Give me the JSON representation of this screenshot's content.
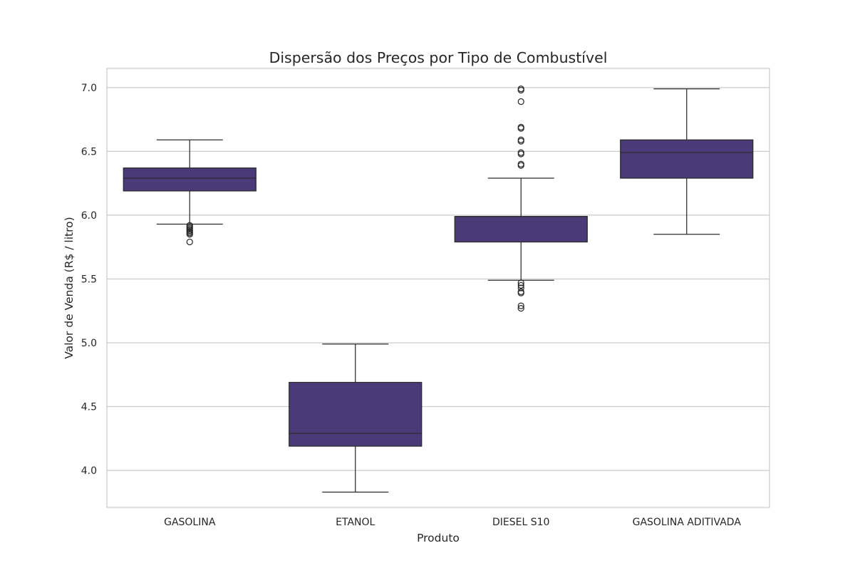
{
  "chart_data": {
    "type": "box",
    "title": "Dispersão dos Preços por Tipo de Combustível",
    "xlabel": "Produto",
    "ylabel": "Valor de Venda (R$ / litro)",
    "ylim": [
      3.71,
      7.15
    ],
    "yticks": [
      "4.0",
      "4.5",
      "5.0",
      "5.5",
      "6.0",
      "6.5",
      "7.0"
    ],
    "grid": "horizontal",
    "colors": {
      "box_fill": "#4a3b78",
      "line": "#2b2b2b",
      "grid": "#cccccc",
      "frame": "#cccccc"
    },
    "categories": [
      "GASOLINA",
      "ETANOL",
      "DIESEL S10",
      "GASOLINA ADITIVADA"
    ],
    "boxes": [
      {
        "category": "GASOLINA",
        "whisker_low": 5.93,
        "q1": 6.19,
        "median": 6.29,
        "q3": 6.37,
        "whisker_high": 6.59,
        "outliers": [
          5.79,
          5.85,
          5.86,
          5.87,
          5.88,
          5.89,
          5.9,
          5.91,
          5.92
        ]
      },
      {
        "category": "ETANOL",
        "whisker_low": 3.83,
        "q1": 4.19,
        "median": 4.29,
        "q3": 4.69,
        "whisker_high": 4.99,
        "outliers": []
      },
      {
        "category": "DIESEL S10",
        "whisker_low": 5.49,
        "q1": 5.79,
        "median": 5.99,
        "q3": 5.99,
        "whisker_high": 6.29,
        "outliers": [
          5.27,
          5.29,
          5.39,
          5.4,
          5.43,
          5.45,
          5.47,
          6.39,
          6.4,
          6.48,
          6.49,
          6.58,
          6.59,
          6.68,
          6.69,
          6.89,
          6.98,
          6.99
        ]
      },
      {
        "category": "GASOLINA ADITIVADA",
        "whisker_low": 5.85,
        "q1": 6.29,
        "median": 6.49,
        "q3": 6.59,
        "whisker_high": 6.99,
        "outliers": []
      }
    ]
  }
}
